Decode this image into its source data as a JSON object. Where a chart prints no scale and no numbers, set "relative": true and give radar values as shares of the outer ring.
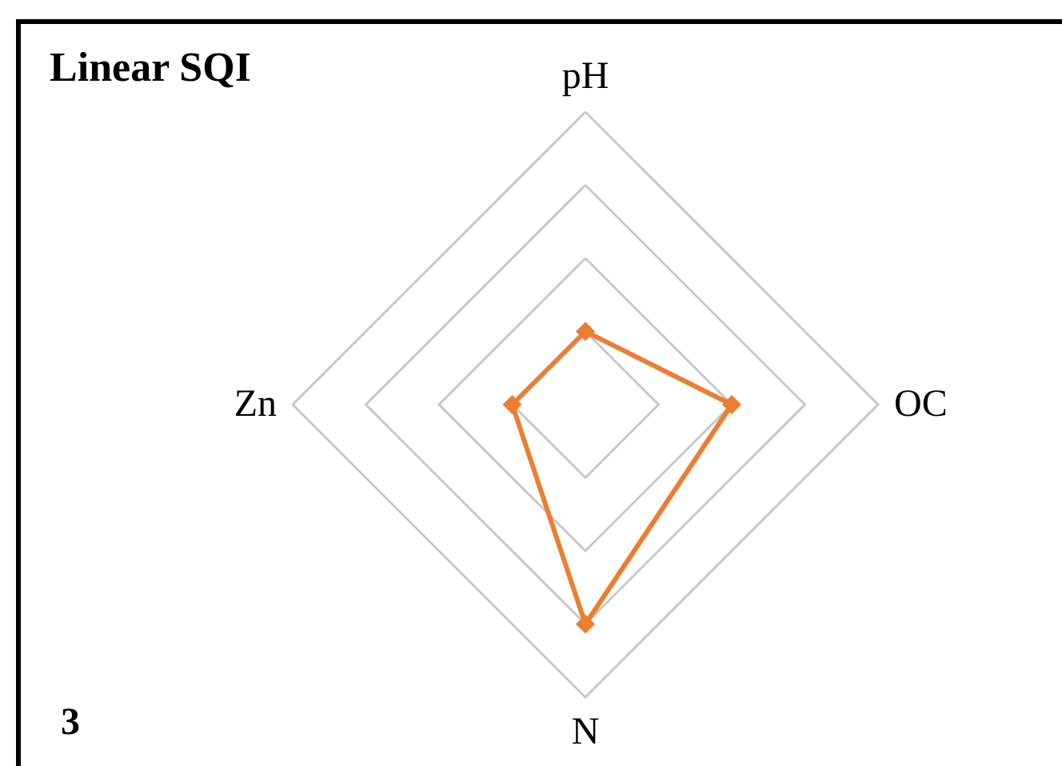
{
  "chart_data": {
    "type": "radar",
    "title": "Linear SQI",
    "annotations": [
      "3"
    ],
    "categories": [
      "pH",
      "OC",
      "N",
      "Zn"
    ],
    "relative": true,
    "series": [
      {
        "color": "#ed7d31",
        "values": [
          0.25,
          0.5,
          0.75,
          0.25
        ]
      }
    ],
    "marker": "diamond",
    "grid": true
  }
}
